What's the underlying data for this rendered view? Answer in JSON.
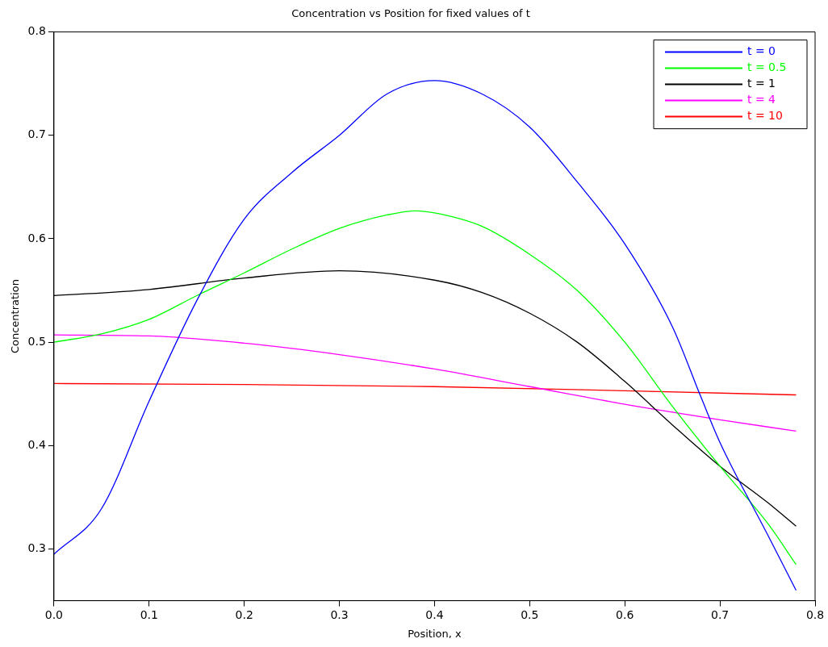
{
  "chart_data": {
    "type": "line",
    "title": "Concentration vs Position for fixed values of t",
    "xlabel": "Position, x",
    "ylabel": "Concentration",
    "xlim": [
      0,
      0.8
    ],
    "xticks": [
      {
        "value": 0,
        "label": "0.0"
      },
      0.1,
      0.2,
      0.3,
      0.4,
      0.5,
      0.6,
      0.7,
      0.8
    ],
    "ylim": [
      0.25,
      0.8
    ],
    "yticks": [
      0.3,
      0.4,
      0.5,
      0.6,
      0.7,
      0.8
    ],
    "grid": false,
    "legend": "top right",
    "marker": "none",
    "line_style": "solid",
    "series": [
      {
        "name": "t = 0",
        "color": "#0000ff",
        "x": [
          0,
          0.05,
          0.1,
          0.15,
          0.2,
          0.25,
          0.3,
          0.35,
          0.4,
          0.45,
          0.5,
          0.55,
          0.6,
          0.65,
          0.68,
          0.7,
          0.75,
          0.78
        ],
        "values": [
          0.295,
          0.339,
          0.443,
          0.54,
          0.619,
          0.664,
          0.7,
          0.74,
          0.753,
          0.74,
          0.708,
          0.655,
          0.595,
          0.515,
          0.447,
          0.403,
          0.314,
          0.26
        ]
      },
      {
        "name": "t = 0.5",
        "color": "#00ff00",
        "x": [
          0,
          0.05,
          0.1,
          0.15,
          0.2,
          0.25,
          0.3,
          0.35,
          0.38,
          0.4,
          0.45,
          0.5,
          0.55,
          0.6,
          0.65,
          0.7,
          0.75,
          0.78
        ],
        "values": [
          0.5,
          0.508,
          0.522,
          0.545,
          0.567,
          0.59,
          0.61,
          0.623,
          0.627,
          0.625,
          0.612,
          0.585,
          0.55,
          0.5,
          0.438,
          0.38,
          0.325,
          0.285
        ]
      },
      {
        "name": "t = 1",
        "color": "#000000",
        "x": [
          0,
          0.1,
          0.2,
          0.3,
          0.4,
          0.45,
          0.5,
          0.55,
          0.6,
          0.65,
          0.7,
          0.75,
          0.78
        ],
        "values": [
          0.545,
          0.551,
          0.562,
          0.569,
          0.56,
          0.548,
          0.528,
          0.5,
          0.462,
          0.42,
          0.38,
          0.345,
          0.322
        ]
      },
      {
        "name": "t = 4",
        "color": "#ff00ff",
        "x": [
          0,
          0.1,
          0.2,
          0.3,
          0.4,
          0.5,
          0.6,
          0.7,
          0.78
        ],
        "values": [
          0.507,
          0.506,
          0.499,
          0.488,
          0.474,
          0.457,
          0.44,
          0.425,
          0.414
        ]
      },
      {
        "name": "t = 10",
        "color": "#ff0000",
        "x": [
          0,
          0.2,
          0.4,
          0.6,
          0.78
        ],
        "values": [
          0.46,
          0.459,
          0.457,
          0.453,
          0.449
        ]
      }
    ]
  }
}
